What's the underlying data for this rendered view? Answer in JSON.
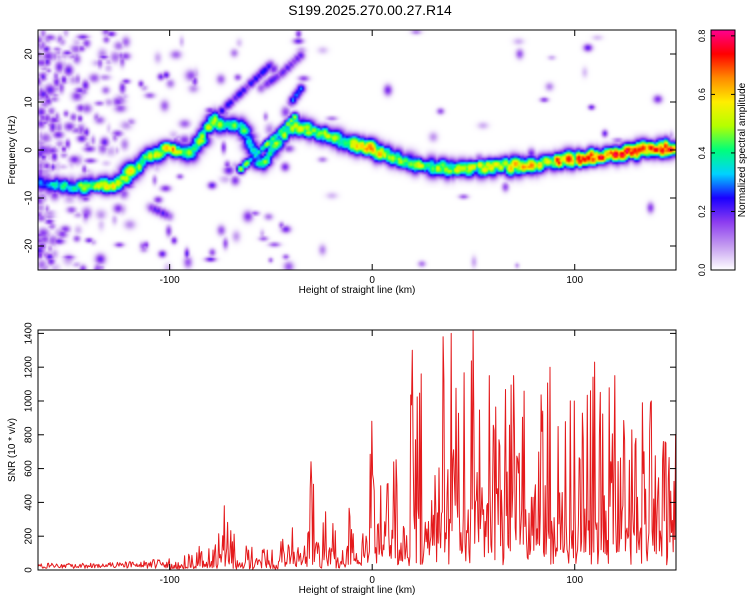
{
  "title": "S199.2025.270.00.27.R14",
  "colorbar": {
    "label": "Normalized spectral amplitude",
    "ticks": [
      "0.0",
      "0.2",
      "0.4",
      "0.6",
      "0.8"
    ],
    "range": [
      0.0,
      0.82
    ],
    "colors": [
      "#ffffff",
      "#c49cf0",
      "#8c3cf0",
      "#1a00ff",
      "#00d2ff",
      "#00ff7a",
      "#b4ff00",
      "#ffee00",
      "#ff8a00",
      "#ff0000",
      "#ff0090"
    ]
  },
  "chart_data": [
    {
      "type": "heatmap",
      "name": "spectrogram",
      "xlabel": "Height of straight line (km)",
      "ylabel": "Frequency (Hz)",
      "xlim": [
        -165,
        150
      ],
      "ylim": [
        -25,
        25
      ],
      "xticks": [
        "-100",
        "0",
        "100"
      ],
      "yticks": [
        "20",
        "10",
        "0",
        "-10",
        "-20"
      ],
      "grid": false,
      "ridge": [
        {
          "x": -165,
          "f": -7,
          "a": 0.3
        },
        {
          "x": -145,
          "f": -8,
          "a": 0.45
        },
        {
          "x": -125,
          "f": -7,
          "a": 0.55
        },
        {
          "x": -110,
          "f": -1,
          "a": 0.5
        },
        {
          "x": -100,
          "f": 0,
          "a": 0.62
        },
        {
          "x": -90,
          "f": -1,
          "a": 0.45
        },
        {
          "x": -80,
          "f": 6,
          "a": 0.5
        },
        {
          "x": -65,
          "f": 5,
          "a": 0.42
        },
        {
          "x": -55,
          "f": -3,
          "a": 0.45
        },
        {
          "x": -40,
          "f": 5,
          "a": 0.5
        },
        {
          "x": -30,
          "f": 4,
          "a": 0.5
        },
        {
          "x": -15,
          "f": 2,
          "a": 0.48
        },
        {
          "x": 0,
          "f": 0,
          "a": 0.6
        },
        {
          "x": 20,
          "f": -3,
          "a": 0.5
        },
        {
          "x": 40,
          "f": -4,
          "a": 0.5
        },
        {
          "x": 60,
          "f": -3.5,
          "a": 0.55
        },
        {
          "x": 80,
          "f": -3,
          "a": 0.6
        },
        {
          "x": 100,
          "f": -2,
          "a": 0.7
        },
        {
          "x": 120,
          "f": -1,
          "a": 0.72
        },
        {
          "x": 135,
          "f": 0,
          "a": 0.75
        },
        {
          "x": 150,
          "f": 0.5,
          "a": 0.7
        }
      ],
      "branches": [
        {
          "x": [
            -80,
            -70,
            -60,
            -50
          ],
          "f": [
            6,
            10,
            14,
            18
          ],
          "a": 0.25
        },
        {
          "x": [
            -65,
            -55,
            -45,
            -38
          ],
          "f": [
            -4,
            0,
            4,
            7
          ],
          "a": 0.5
        },
        {
          "x": [
            -40,
            -35
          ],
          "f": [
            10,
            13
          ],
          "a": 0.3
        },
        {
          "x": [
            -110,
            -100
          ],
          "f": [
            -12,
            -14
          ],
          "a": 0.2
        },
        {
          "x": [
            -55,
            -45,
            -35
          ],
          "f": [
            13,
            16,
            20
          ],
          "a": 0.2
        }
      ]
    },
    {
      "type": "line",
      "name": "snr",
      "xlabel": "Height of straight line (km)",
      "ylabel": "SNR (10 * v/v)",
      "xlim": [
        -165,
        150
      ],
      "ylim": [
        0,
        1420
      ],
      "xticks": [
        "-100",
        "0",
        "100"
      ],
      "yticks": [
        "0",
        "200",
        "400",
        "600",
        "800",
        "1000",
        "1200",
        "1400"
      ],
      "color": "#e41a1c",
      "grid": false,
      "envelope": {
        "x": [
          -165,
          -140,
          -120,
          -100,
          -95,
          -85,
          -78,
          -73,
          -70,
          -65,
          -60,
          -50,
          -45,
          -40,
          -35,
          -30,
          -25,
          -20,
          -10,
          -5,
          0,
          5,
          10,
          15,
          18,
          20,
          25,
          30,
          35,
          38,
          40,
          45,
          50,
          55,
          60,
          70,
          80,
          90,
          100,
          110,
          120,
          130,
          140,
          150
        ],
        "y": [
          30,
          30,
          40,
          60,
          80,
          150,
          170,
          380,
          250,
          170,
          150,
          120,
          170,
          260,
          330,
          640,
          380,
          380,
          420,
          400,
          880,
          520,
          650,
          660,
          820,
          1300,
          1150,
          1100,
          1380,
          1050,
          1380,
          1200,
          1420,
          1150,
          1050,
          1150,
          1100,
          1150,
          1000,
          1180,
          1150,
          1050,
          1030,
          980
        ]
      },
      "peaks": [
        {
          "x": -73,
          "y": 380
        },
        {
          "x": -30,
          "y": 640
        },
        {
          "x": 0,
          "y": 880
        },
        {
          "x": 20,
          "y": 1300
        },
        {
          "x": 35,
          "y": 1380
        },
        {
          "x": 39,
          "y": 1400
        },
        {
          "x": 50,
          "y": 1420
        },
        {
          "x": 58,
          "y": 1150
        },
        {
          "x": 70,
          "y": 1150
        },
        {
          "x": 88,
          "y": 1200
        },
        {
          "x": 100,
          "y": 1000
        },
        {
          "x": 110,
          "y": 1230
        },
        {
          "x": 120,
          "y": 1150
        },
        {
          "x": 138,
          "y": 1000
        }
      ]
    }
  ]
}
